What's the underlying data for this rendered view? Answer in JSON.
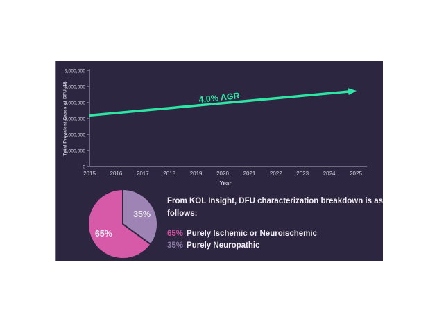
{
  "slide": {
    "bg_color": "#2d2640",
    "accent_green": "#2ee6a4",
    "axis_color": "#b0abc0",
    "axis_text_color": "#d6d2e0"
  },
  "chart_data": [
    {
      "type": "line",
      "title": "",
      "xlabel": "Year",
      "ylabel": "Total Prevalent Cases of DFU (N)",
      "annotation": "4.0% AGR",
      "annual_growth_rate": "4.0%",
      "x": [
        2015,
        2016,
        2017,
        2018,
        2019,
        2020,
        2021,
        2022,
        2023,
        2024,
        2025
      ],
      "x_tick_labels": [
        "2015",
        "2016",
        "2017",
        "2018",
        "2019",
        "2020",
        "2021",
        "2022",
        "2023",
        "2024",
        "2025"
      ],
      "y_tick_labels": [
        "0",
        "1,000,000",
        "2,000,000",
        "3,000,000",
        "4,000,000",
        "5,000,000",
        "6,000,000"
      ],
      "ylim": [
        0,
        6000000
      ],
      "grid": false,
      "legend": false,
      "series": [
        {
          "name": "Total Prevalent Cases of DFU",
          "color": "#2ee6a4",
          "values": [
            3200000,
            3328000,
            3461000,
            3600000,
            3744000,
            3893000,
            4049000,
            4211000,
            4379000,
            4555000,
            4737000
          ]
        }
      ]
    },
    {
      "type": "pie",
      "title": "",
      "start": "top-clockwise",
      "label_color": "#f0e9f4",
      "slices": [
        {
          "label": "35%",
          "value": 35,
          "color": "#9d84b5"
        },
        {
          "label": "65%",
          "value": 65,
          "color": "#d65aa8"
        }
      ]
    }
  ],
  "text_panel": {
    "heading": "From KOL Insight, DFU characterization breakdown is as follows:",
    "items": [
      {
        "pct": "65%",
        "pct_color": "#c9559d",
        "label": "Purely Ischemic or Neuroischemic"
      },
      {
        "pct": "35%",
        "pct_color": "#8d7ba6",
        "label": "Purely Neuropathic"
      }
    ]
  }
}
